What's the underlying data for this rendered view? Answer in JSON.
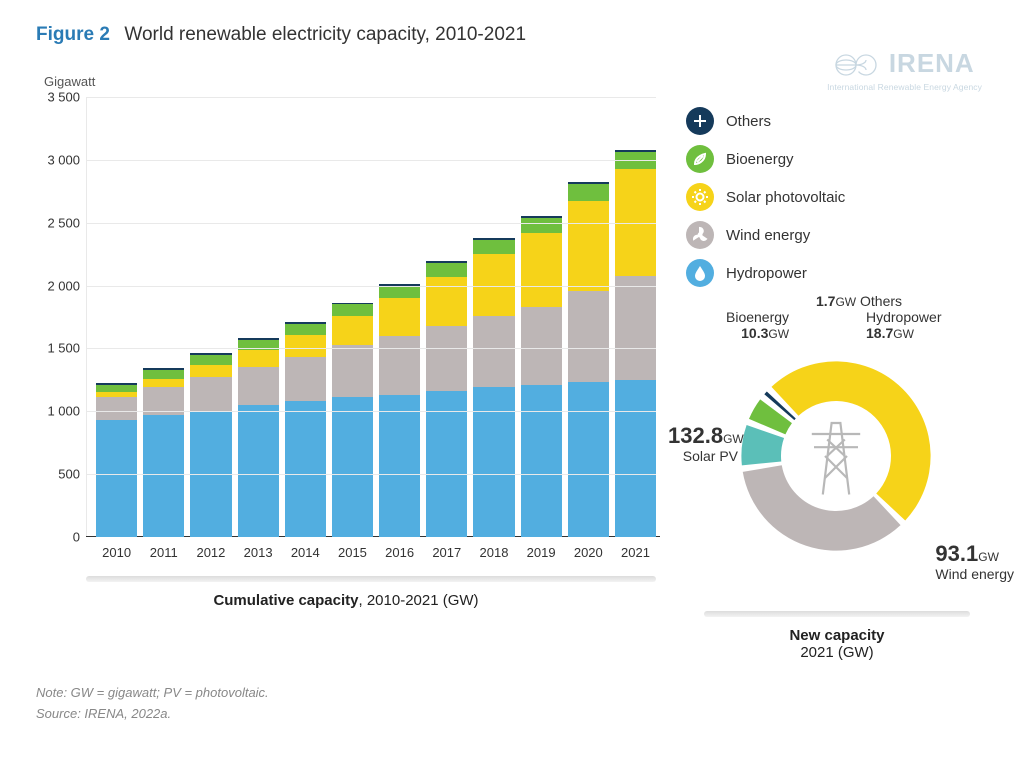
{
  "header": {
    "fig_label": "Figure 2",
    "title": "World renewable electricity capacity, 2010-2021"
  },
  "logo": {
    "text": "IRENA",
    "subtitle": "International Renewable Energy Agency",
    "tint": "#9cb7c9"
  },
  "yaxis_title": "Gigawatt",
  "bar_chart": {
    "type": "stacked-bar",
    "ylim": [
      0,
      3500
    ],
    "ytick_step": 500,
    "grid_color": "#e9e9e9",
    "background_color": "#ffffff",
    "categories": [
      "2010",
      "2011",
      "2012",
      "2013",
      "2014",
      "2015",
      "2016",
      "2017",
      "2018",
      "2019",
      "2020",
      "2021"
    ],
    "series": [
      {
        "key": "hydropower",
        "label": "Hydropower",
        "color": "#52aee0",
        "values": [
          930,
          970,
          1000,
          1050,
          1080,
          1110,
          1130,
          1160,
          1190,
          1210,
          1230,
          1250
        ]
      },
      {
        "key": "wind",
        "label": "Wind energy",
        "color": "#bdb6b6",
        "values": [
          180,
          220,
          270,
          300,
          350,
          420,
          470,
          520,
          570,
          620,
          730,
          825
        ]
      },
      {
        "key": "solar",
        "label": "Solar photovoltaic",
        "color": "#f6d319",
        "values": [
          40,
          70,
          100,
          135,
          175,
          225,
          300,
          390,
          490,
          590,
          715,
          850
        ]
      },
      {
        "key": "bioenergy",
        "label": "Bioenergy",
        "color": "#6fbf3e",
        "values": [
          60,
          70,
          80,
          85,
          90,
          95,
          100,
          110,
          115,
          120,
          130,
          135
        ]
      },
      {
        "key": "others",
        "label": "Others",
        "color": "#153a5b",
        "values": [
          12,
          13,
          14,
          14,
          15,
          15,
          16,
          16,
          17,
          17,
          18,
          18
        ]
      }
    ],
    "caption_bold": "Cumulative capacity",
    "caption_rest": ", 2010-2021 (GW)"
  },
  "legend": {
    "items": [
      {
        "key": "others",
        "label": "Others",
        "color": "#153a5b",
        "icon": "plus"
      },
      {
        "key": "bioenergy",
        "label": "Bioenergy",
        "color": "#6fbf3e",
        "icon": "leaf"
      },
      {
        "key": "solar",
        "label": "Solar photovoltaic",
        "color": "#f6d319",
        "icon": "sun"
      },
      {
        "key": "wind",
        "label": "Wind energy",
        "color": "#bdb6b6",
        "icon": "fan"
      },
      {
        "key": "hydro",
        "label": "Hydropower",
        "color": "#52aee0",
        "icon": "drop"
      }
    ]
  },
  "donut": {
    "type": "donut",
    "center_icon": "pylon",
    "inner_radius": 50,
    "outer_radius": 86,
    "gap_deg": 4,
    "start_angle_deg": 225,
    "slices": [
      {
        "key": "solar",
        "label": "Solar PV",
        "value": 132.8,
        "unit": "GW",
        "color": "#f6d319"
      },
      {
        "key": "wind",
        "label": "Wind energy",
        "value": 93.1,
        "unit": "GW",
        "color": "#bdb6b6"
      },
      {
        "key": "hydro",
        "label": "Hydropower",
        "value": 18.7,
        "unit": "GW",
        "color": "#5bbfb8"
      },
      {
        "key": "bio",
        "label": "Bioenergy",
        "value": 10.3,
        "unit": "GW",
        "color": "#6fbf3e"
      },
      {
        "key": "others",
        "label": "Others",
        "value": 1.7,
        "unit": "GW",
        "color": "#153a5b"
      }
    ],
    "caption_bold": "New capacity",
    "caption_rest": "2021 (GW)"
  },
  "footnotes": {
    "note": "Note: GW = gigawatt; PV = photovoltaic.",
    "source": "Source: IRENA, 2022a."
  }
}
